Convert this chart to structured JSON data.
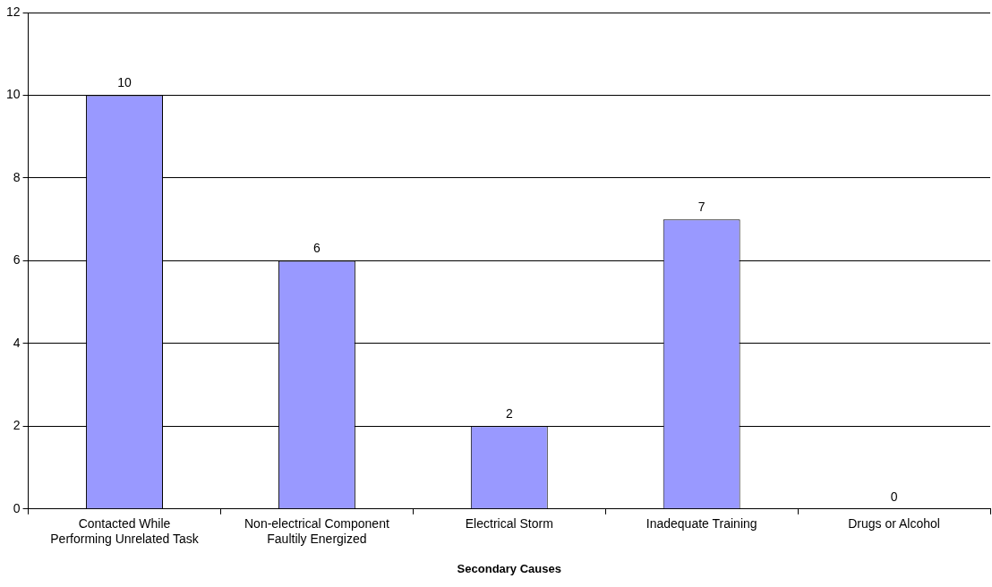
{
  "chart_data": {
    "type": "bar",
    "xlabel": "Secondary Causes",
    "categories": [
      "Contacted While\nPerforming Unrelated Task",
      "Non-electrical Component\nFaultily Energized",
      "Electrical Storm",
      "Inadequate Training",
      "Drugs or Alcohol"
    ],
    "values": [
      10,
      6,
      2,
      7,
      0
    ],
    "color": "#9999ff",
    "ylim": [
      0,
      12
    ],
    "yticks": [
      0,
      2,
      4,
      6,
      8,
      10,
      12
    ],
    "grid": "y",
    "data_labels": true,
    "legend": false
  }
}
